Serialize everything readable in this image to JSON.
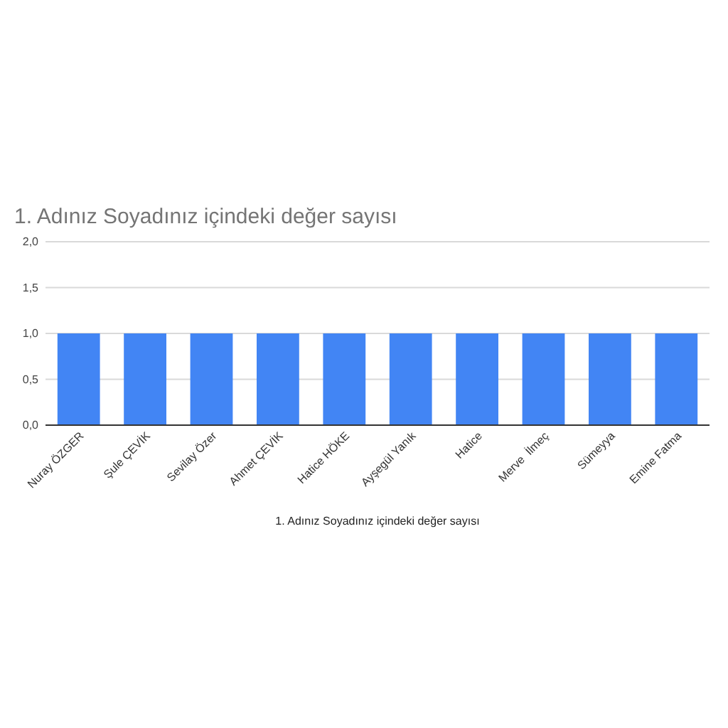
{
  "chart_data": {
    "type": "bar",
    "title": "1. Adınız Soyadınız içindeki değer sayısı",
    "xlabel": "1. Adınız Soyadınız içindeki değer sayısı",
    "categories": [
      "Nuray ÖZGER",
      "Şule ÇEVİK",
      "Sevilay Özer",
      "Ahmet ÇEVİK",
      "Hatice HÖKE",
      "Ayşegül Yanık",
      "Hatice",
      "Merve  İlmeç",
      "Sümeyya",
      "Emine Fatma"
    ],
    "values": [
      1,
      1,
      1,
      1,
      1,
      1,
      1,
      1,
      1,
      1
    ],
    "color": "#4285f4",
    "ylim": [
      0,
      2
    ],
    "yticks": [
      {
        "value": 0,
        "label": "0,0"
      },
      {
        "value": 0.5,
        "label": "0,5"
      },
      {
        "value": 1,
        "label": "1,0"
      },
      {
        "value": 1.5,
        "label": "1,5"
      },
      {
        "value": 2,
        "label": "2,0"
      }
    ],
    "grid": "y"
  }
}
